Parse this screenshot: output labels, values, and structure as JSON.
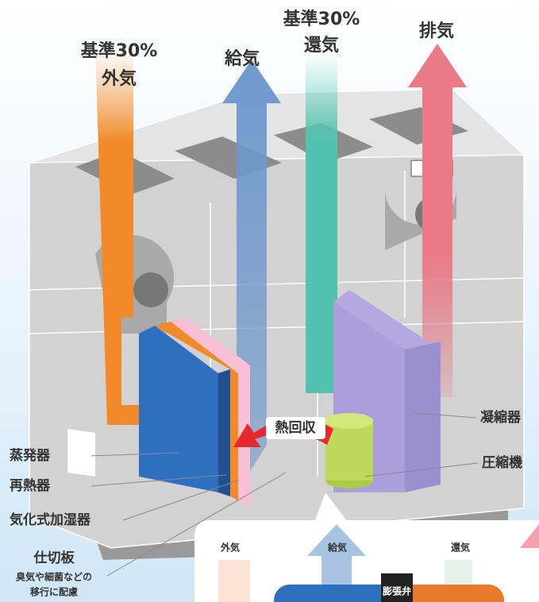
{
  "flows": {
    "outside_air": {
      "lines": [
        "基準30%",
        "外気"
      ]
    },
    "supply_air": "給気",
    "return_air": {
      "lines": [
        "基準30%",
        "還気"
      ]
    },
    "exhaust_air": "排気"
  },
  "heat_recovery": "熱回収",
  "components": {
    "condenser": "凝縮器",
    "compressor": "圧縮機",
    "evaporator": "蒸発器",
    "reheater": "再熱器",
    "humidifier": "気化式加湿器"
  },
  "partition": {
    "title": "仕切板",
    "note_lines": [
      "臭気や細菌などの",
      "移行に配慮"
    ]
  },
  "inset": {
    "outside_air": "外気",
    "supply_air": "給気",
    "return_air": "還気",
    "expansion_valve": "膨張弁"
  }
}
